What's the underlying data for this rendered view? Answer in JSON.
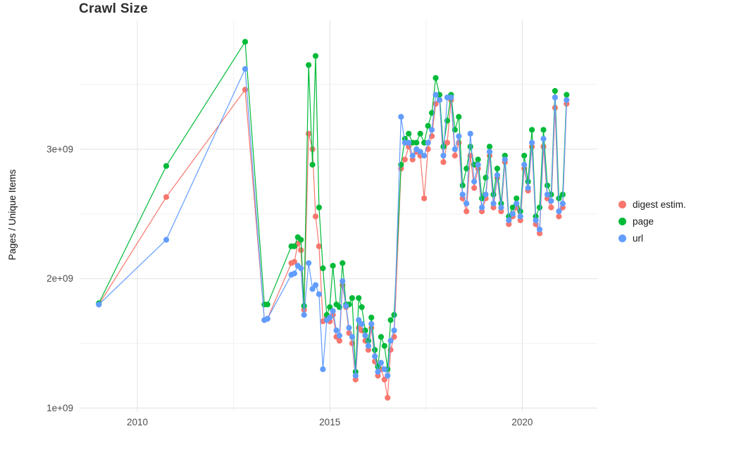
{
  "chart_data": {
    "type": "line",
    "title": "Crawl Size",
    "xlabel": "",
    "ylabel": "Pages / Unique Items",
    "y_unit": "items, value x 1e9",
    "x_unit": "year (decimal)",
    "xlim": [
      2008.5,
      2021.95
    ],
    "ylim": [
      0.97,
      4.0
    ],
    "grid": true,
    "legend_position": "right",
    "x_ticks": [
      {
        "value": 2010,
        "label": "2010"
      },
      {
        "value": 2015,
        "label": "2015"
      },
      {
        "value": 2020,
        "label": "2020"
      }
    ],
    "y_ticks": [
      {
        "value": 1,
        "label": "1e+09"
      },
      {
        "value": 2,
        "label": "2e+09"
      },
      {
        "value": 3,
        "label": "3e+09"
      }
    ],
    "x_minor_ticks": [
      2012.5,
      2017.5
    ],
    "y_minor_ticks": [
      1.5,
      2.5,
      3.5
    ],
    "colors": {
      "major_grid": "#e5e5e5",
      "minor_grid": "#f2f2f2",
      "tick_text": "#4d4d4d"
    },
    "x": [
      2009.0,
      2010.75,
      2012.8,
      2013.3,
      2013.38,
      2014.0,
      2014.08,
      2014.17,
      2014.25,
      2014.33,
      2014.45,
      2014.55,
      2014.63,
      2014.72,
      2014.82,
      2014.92,
      2015.0,
      2015.08,
      2015.17,
      2015.25,
      2015.33,
      2015.42,
      2015.5,
      2015.58,
      2015.67,
      2015.75,
      2015.83,
      2015.92,
      2016.0,
      2016.08,
      2016.17,
      2016.25,
      2016.33,
      2016.42,
      2016.5,
      2016.58,
      2016.67,
      2016.85,
      2016.95,
      2017.05,
      2017.15,
      2017.25,
      2017.35,
      2017.45,
      2017.55,
      2017.65,
      2017.75,
      2017.85,
      2017.95,
      2018.05,
      2018.15,
      2018.25,
      2018.35,
      2018.45,
      2018.55,
      2018.65,
      2018.75,
      2018.85,
      2018.95,
      2019.05,
      2019.15,
      2019.25,
      2019.35,
      2019.45,
      2019.55,
      2019.65,
      2019.75,
      2019.85,
      2019.95,
      2020.05,
      2020.15,
      2020.25,
      2020.35,
      2020.45,
      2020.55,
      2020.65,
      2020.75,
      2020.85,
      2020.95,
      2021.05,
      2021.15
    ],
    "series": [
      {
        "name": "digest estim.",
        "color": "#F8766D",
        "values": [
          1.8,
          2.63,
          3.46,
          1.68,
          1.69,
          2.12,
          2.13,
          2.27,
          2.22,
          1.76,
          3.12,
          3.0,
          2.48,
          2.25,
          1.67,
          1.7,
          1.67,
          1.72,
          1.55,
          1.52,
          1.95,
          1.78,
          1.58,
          1.5,
          1.22,
          1.62,
          1.6,
          1.52,
          1.45,
          1.62,
          1.36,
          1.25,
          1.3,
          1.22,
          1.08,
          1.45,
          1.55,
          2.85,
          2.92,
          3.02,
          2.92,
          2.98,
          2.95,
          2.62,
          3.0,
          3.1,
          3.35,
          3.38,
          2.9,
          3.05,
          3.38,
          2.95,
          3.05,
          2.62,
          2.52,
          2.95,
          2.7,
          2.85,
          2.52,
          2.62,
          2.95,
          2.55,
          2.78,
          2.52,
          2.9,
          2.42,
          2.48,
          2.55,
          2.45,
          2.85,
          2.68,
          3.02,
          2.42,
          2.35,
          3.02,
          2.62,
          2.55,
          3.32,
          2.48,
          2.55,
          3.35
        ]
      },
      {
        "name": "page",
        "color": "#00BA38",
        "values": [
          1.81,
          2.87,
          3.83,
          1.8,
          1.8,
          2.25,
          2.25,
          2.32,
          2.3,
          1.79,
          3.65,
          2.88,
          3.72,
          2.55,
          2.08,
          1.72,
          1.78,
          2.1,
          1.8,
          1.78,
          2.12,
          1.8,
          1.8,
          1.85,
          1.28,
          1.85,
          1.78,
          1.6,
          1.52,
          1.7,
          1.45,
          1.32,
          1.55,
          1.48,
          1.3,
          1.68,
          1.72,
          2.88,
          3.08,
          3.12,
          3.05,
          3.05,
          3.12,
          3.05,
          3.18,
          3.28,
          3.55,
          3.42,
          3.02,
          3.22,
          3.42,
          3.15,
          3.25,
          2.72,
          2.85,
          3.02,
          2.88,
          2.92,
          2.62,
          2.78,
          3.02,
          2.65,
          2.85,
          2.58,
          2.95,
          2.48,
          2.55,
          2.62,
          2.52,
          2.95,
          2.75,
          3.15,
          2.48,
          2.55,
          3.15,
          2.72,
          2.65,
          3.45,
          2.62,
          2.65,
          3.42
        ]
      },
      {
        "name": "url",
        "color": "#619CFF",
        "values": [
          1.8,
          2.3,
          3.62,
          1.68,
          1.69,
          2.03,
          2.04,
          2.1,
          2.08,
          1.72,
          2.12,
          1.92,
          1.95,
          1.88,
          1.3,
          1.68,
          1.7,
          1.75,
          1.6,
          1.56,
          1.98,
          1.79,
          1.62,
          1.55,
          1.25,
          1.68,
          1.65,
          1.56,
          1.48,
          1.65,
          1.4,
          1.28,
          1.35,
          1.3,
          1.25,
          1.52,
          1.6,
          3.25,
          3.05,
          3.05,
          2.95,
          3.0,
          2.98,
          2.95,
          3.05,
          3.15,
          3.42,
          3.38,
          2.95,
          3.4,
          3.4,
          3.0,
          3.1,
          2.65,
          2.58,
          3.12,
          2.75,
          2.88,
          2.55,
          2.65,
          2.98,
          2.58,
          2.8,
          2.55,
          2.92,
          2.45,
          2.5,
          2.58,
          2.48,
          2.88,
          2.7,
          3.05,
          2.45,
          2.38,
          3.08,
          2.65,
          2.6,
          3.4,
          2.52,
          2.58,
          3.38
        ]
      }
    ]
  }
}
